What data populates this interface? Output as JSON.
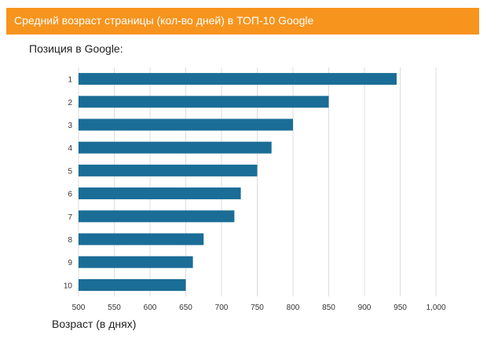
{
  "header": {
    "title": "Средний возраст страницы (кол-во дней) в ТОП-10 Google"
  },
  "colors": {
    "header_bg": "#f7941d",
    "bar": "#1a6d96",
    "grid": "#dddddd"
  },
  "chart_data": {
    "type": "bar",
    "orientation": "horizontal",
    "title": "Средний возраст страницы (кол-во дней) в ТОП-10 Google",
    "ylabel": "Позиция в Google:",
    "xlabel": "Возраст (в днях)",
    "categories": [
      "1",
      "2",
      "3",
      "4",
      "5",
      "6",
      "7",
      "8",
      "9",
      "10"
    ],
    "values": [
      945,
      850,
      800,
      770,
      750,
      727,
      718,
      675,
      660,
      650
    ],
    "xlim": [
      500,
      1000
    ],
    "x_ticks": [
      "500",
      "550",
      "600",
      "650",
      "700",
      "750",
      "800",
      "850",
      "900",
      "950",
      "1,000"
    ],
    "grid": true
  }
}
